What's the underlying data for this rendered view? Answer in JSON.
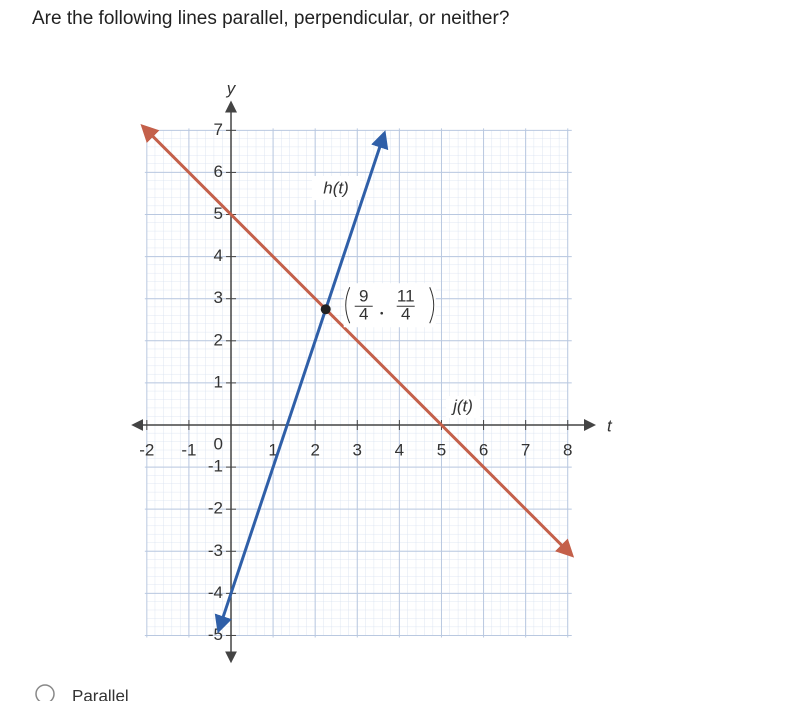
{
  "question": "Are the following lines parallel, perpendicular, or neither?",
  "options": [
    "Parallel"
  ],
  "chart_data": {
    "type": "line",
    "xlabel": "t",
    "ylabel": "y",
    "origin_label": "0",
    "xlim": [
      -2.3,
      8.6
    ],
    "ylim": [
      -5.4,
      7.4
    ],
    "xticks": [
      -2,
      -1,
      1,
      2,
      3,
      4,
      5,
      6,
      7,
      8
    ],
    "yticks": [
      -5,
      -4,
      -3,
      -2,
      -1,
      1,
      2,
      3,
      4,
      5,
      6,
      7
    ],
    "grid": true,
    "series": [
      {
        "name": "h(t)",
        "color": "#2f5fa8",
        "x": [
          -0.25,
          3.6
        ],
        "values": [
          -4.75,
          6.8
        ]
      },
      {
        "name": "j(t)",
        "color": "#c4604a",
        "x": [
          -2,
          8
        ],
        "values": [
          7,
          -3
        ]
      }
    ],
    "point": {
      "x": 2.25,
      "y": 2.75,
      "label": [
        [
          "9",
          "4"
        ],
        [
          "11",
          "4"
        ]
      ]
    }
  }
}
